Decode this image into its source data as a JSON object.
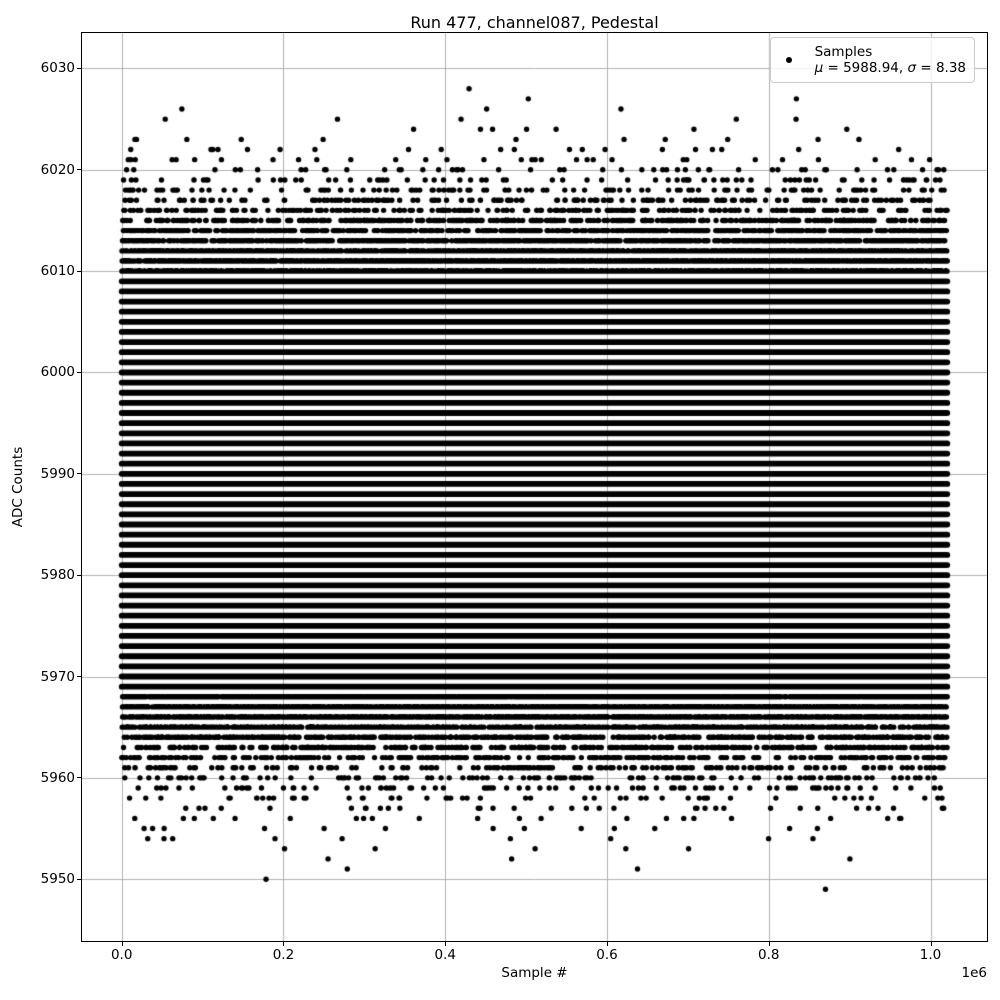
{
  "figure": {
    "title": "Run 477, channel087, Pedestal",
    "xlabel": "Sample #",
    "ylabel": "ADC Counts",
    "x_offset_label": "1e6"
  },
  "legend": {
    "label": "Samples",
    "mu_symbol": "μ",
    "mu_text": " = 5988.94, ",
    "sigma_symbol": "σ",
    "sigma_text": " = 8.38"
  },
  "chart_data": {
    "type": "scatter",
    "title": "Run 477, channel087, Pedestal",
    "xlabel": "Sample #",
    "ylabel": "ADC Counts",
    "x_offset_label": "1e6",
    "legend": {
      "series_label": "Samples",
      "stats_line": "μ = 5988.94, σ = 8.38",
      "position": "upper right"
    },
    "series": [
      {
        "name": "Samples",
        "marker": "point",
        "color": "#000000",
        "distribution": "gaussian-integer-quantized",
        "mean": 5988.94,
        "sigma": 8.38,
        "n_samples": 1020000,
        "x_range": [
          0,
          1020700
        ],
        "y_observed_range": [
          5948,
          6029
        ]
      }
    ],
    "xticks": [
      0,
      200000,
      400000,
      600000,
      800000,
      1000000
    ],
    "xtick_labels": [
      "0.0",
      "0.2",
      "0.4",
      "0.6",
      "0.8",
      "1.0"
    ],
    "yticks": [
      5950,
      5960,
      5970,
      5980,
      5990,
      6000,
      6010,
      6020,
      6030
    ],
    "ytick_labels": [
      "5950",
      "5960",
      "5970",
      "5980",
      "5990",
      "6000",
      "6010",
      "6020",
      "6030"
    ],
    "xlim": [
      -49100,
      1069800
    ],
    "ylim": [
      5943.9,
      6033.5
    ],
    "grid": true,
    "grid_color": "#b0b0b0",
    "background": "#ffffff"
  }
}
